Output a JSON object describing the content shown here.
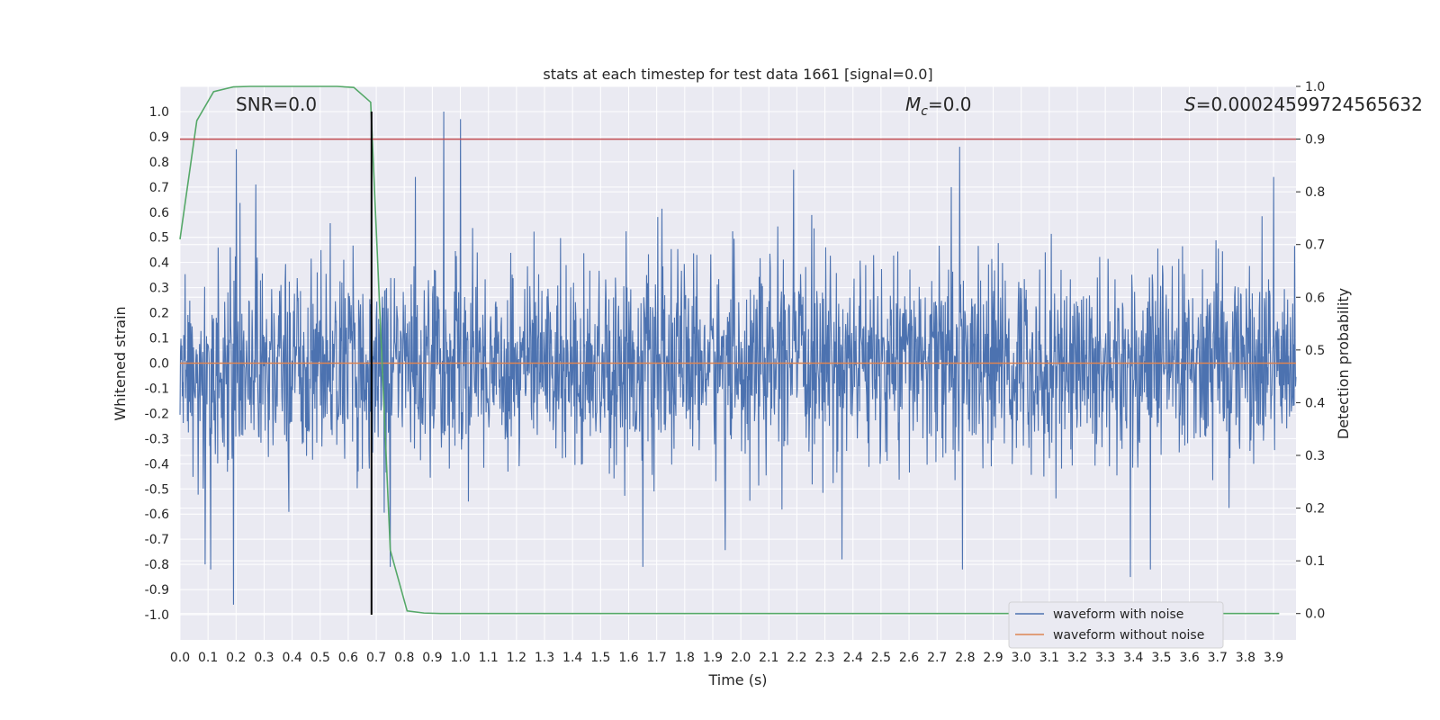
{
  "chart_data": {
    "type": "line",
    "title": "stats at each timestep for test data 1661 [signal=0.0]",
    "xlabel": "Time (s)",
    "ylabel": "Whitened strain",
    "y2label": "Detection probability",
    "xlim": [
      0.0,
      3.98
    ],
    "ylim": [
      -1.1,
      1.1
    ],
    "y2lim": [
      -0.05,
      1.0
    ],
    "x_ticks": [
      "0.0",
      "0.1",
      "0.2",
      "0.3",
      "0.4",
      "0.5",
      "0.6",
      "0.7",
      "0.8",
      "0.9",
      "1.0",
      "1.1",
      "1.2",
      "1.3",
      "1.4",
      "1.5",
      "1.6",
      "1.7",
      "1.8",
      "1.9",
      "2.0",
      "2.1",
      "2.2",
      "2.3",
      "2.4",
      "2.5",
      "2.6",
      "2.7",
      "2.8",
      "2.9",
      "3.0",
      "3.1",
      "3.2",
      "3.3",
      "3.4",
      "3.5",
      "3.6",
      "3.7",
      "3.8",
      "3.9"
    ],
    "y_ticks": [
      "1.0",
      "0.9",
      "0.8",
      "0.7",
      "0.6",
      "0.5",
      "0.4",
      "0.3",
      "0.2",
      "0.1",
      "0.0",
      "-0.1",
      "-0.2",
      "-0.3",
      "-0.4",
      "-0.5",
      "-0.6",
      "-0.7",
      "-0.8",
      "-0.9",
      "-1.0"
    ],
    "y2_ticks": [
      "1.0",
      "0.9",
      "0.8",
      "0.7",
      "0.6",
      "0.5",
      "0.4",
      "0.3",
      "0.2",
      "0.1",
      "0.0"
    ],
    "annotations": {
      "snr": "SNR=0.0",
      "mc": "=0.0",
      "s": "=0.00024599724565632"
    },
    "threshold": {
      "y2": 0.9
    },
    "marker_line": {
      "x": 0.683,
      "y_range": [
        -1.0,
        1.0
      ]
    },
    "series": [
      {
        "name": "waveform with noise",
        "color": "#4c72b0",
        "axis": "left",
        "kind": "noise",
        "x_range": [
          0.0,
          3.98
        ],
        "amplitude_envelope": 0.35,
        "peaks": [
          {
            "x": 0.94,
            "y": 1.0
          },
          {
            "x": 1.0,
            "y": 0.97
          },
          {
            "x": 0.2,
            "y": 0.85
          },
          {
            "x": 2.78,
            "y": 0.86
          },
          {
            "x": 0.19,
            "y": -0.96
          },
          {
            "x": 0.09,
            "y": -0.8
          },
          {
            "x": 0.11,
            "y": -0.82
          },
          {
            "x": 0.75,
            "y": -0.81
          },
          {
            "x": 2.79,
            "y": -0.82
          },
          {
            "x": 3.39,
            "y": -0.85
          },
          {
            "x": 3.46,
            "y": -0.82
          },
          {
            "x": 1.65,
            "y": -0.81
          },
          {
            "x": 3.9,
            "y": 0.74
          },
          {
            "x": 0.27,
            "y": 0.71
          },
          {
            "x": 0.84,
            "y": 0.74
          },
          {
            "x": 2.75,
            "y": 0.7
          }
        ]
      },
      {
        "name": "waveform without noise",
        "color": "#dd8452",
        "axis": "left",
        "kind": "line",
        "x": [
          0.0,
          3.98
        ],
        "y": [
          0.0,
          0.0
        ]
      },
      {
        "name": "",
        "color": "#55a868",
        "axis": "right",
        "kind": "line",
        "x": [
          0.0,
          0.06,
          0.12,
          0.19,
          0.25,
          0.31,
          0.38,
          0.44,
          0.5,
          0.56,
          0.62,
          0.68,
          0.75,
          0.81,
          0.87,
          0.93,
          1.0,
          1.5,
          2.0,
          2.5,
          3.0,
          3.5,
          3.92
        ],
        "y": [
          0.71,
          0.935,
          0.99,
          0.999,
          1.0,
          1.0,
          1.0,
          1.0,
          1.0,
          1.0,
          0.998,
          0.97,
          0.12,
          0.005,
          0.001,
          0.0,
          0.0,
          0.0,
          0.0,
          0.0,
          0.0,
          0.0,
          0.0
        ]
      }
    ],
    "legend": {
      "placement": "lower-right",
      "entries": [
        "waveform with noise",
        "waveform without noise"
      ]
    },
    "grid": true
  },
  "colors": {
    "plot_bg": "#eaeaf2",
    "grid": "#ffffff",
    "noise": "#4c72b0",
    "clean": "#dd8452",
    "prob": "#55a868",
    "threshold": "#c44e52",
    "marker": "#000000"
  }
}
